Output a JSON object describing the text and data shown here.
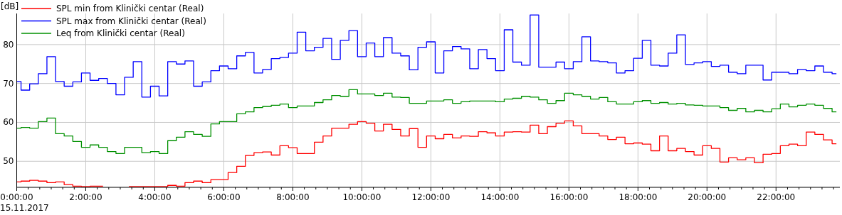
{
  "chart_data": {
    "type": "step",
    "ylabel": "[dB]",
    "legend": "top left",
    "grid": true,
    "x": [
      0,
      0.25,
      0.5,
      0.75,
      1,
      1.25,
      1.5,
      1.75,
      2,
      2.25,
      2.5,
      2.75,
      3,
      3.25,
      3.5,
      3.75,
      4,
      4.25,
      4.5,
      4.75,
      5,
      5.25,
      5.5,
      5.75,
      6,
      6.25,
      6.5,
      6.75,
      7,
      7.25,
      7.5,
      7.75,
      8,
      8.25,
      8.5,
      8.75,
      9,
      9.25,
      9.5,
      9.75,
      10,
      10.25,
      10.5,
      10.75,
      11,
      11.25,
      11.5,
      11.75,
      12,
      12.25,
      12.5,
      12.75,
      13,
      13.25,
      13.5,
      13.75,
      14,
      14.25,
      14.5,
      14.75,
      15,
      15.25,
      15.5,
      15.75,
      16,
      16.25,
      16.5,
      16.75,
      17,
      17.25,
      17.5,
      17.75,
      18,
      18.25,
      18.5,
      18.75,
      19,
      19.25,
      19.5,
      19.75,
      20,
      20.25,
      20.5,
      20.75,
      21,
      21.25,
      21.5,
      21.75,
      22,
      22.25,
      22.5,
      22.75,
      23,
      23.25,
      23.5,
      23.75
    ],
    "xlim": [
      0,
      23.85
    ],
    "xticks": [
      {
        "value": 0,
        "label": "0:00:00"
      },
      {
        "value": 0.3333,
        "label": null
      },
      {
        "value": 0.6667,
        "label": null
      },
      {
        "value": 1,
        "label": null
      },
      {
        "value": 1.3333,
        "label": null
      },
      {
        "value": 1.6667,
        "label": null
      },
      {
        "value": 2,
        "label": "2:00:00"
      },
      {
        "value": 2.3333,
        "label": null
      },
      {
        "value": 2.6667,
        "label": null
      },
      {
        "value": 3,
        "label": null
      },
      {
        "value": 3.3333,
        "label": null
      },
      {
        "value": 3.6667,
        "label": null
      },
      {
        "value": 4,
        "label": "4:00:00"
      },
      {
        "value": 4.3333,
        "label": null
      },
      {
        "value": 4.6667,
        "label": null
      },
      {
        "value": 5,
        "label": null
      },
      {
        "value": 5.3333,
        "label": null
      },
      {
        "value": 5.6667,
        "label": null
      },
      {
        "value": 6,
        "label": "6:00:00"
      },
      {
        "value": 6.3333,
        "label": null
      },
      {
        "value": 6.6667,
        "label": null
      },
      {
        "value": 7,
        "label": null
      },
      {
        "value": 7.3333,
        "label": null
      },
      {
        "value": 7.6667,
        "label": null
      },
      {
        "value": 8,
        "label": "8:00:00"
      },
      {
        "value": 8.3333,
        "label": null
      },
      {
        "value": 8.6667,
        "label": null
      },
      {
        "value": 9,
        "label": null
      },
      {
        "value": 9.3333,
        "label": null
      },
      {
        "value": 9.6667,
        "label": null
      },
      {
        "value": 10,
        "label": "10:00:00"
      },
      {
        "value": 10.3333,
        "label": null
      },
      {
        "value": 10.6667,
        "label": null
      },
      {
        "value": 11,
        "label": null
      },
      {
        "value": 11.3333,
        "label": null
      },
      {
        "value": 11.6667,
        "label": null
      },
      {
        "value": 12,
        "label": "12:00:00"
      },
      {
        "value": 12.3333,
        "label": null
      },
      {
        "value": 12.6667,
        "label": null
      },
      {
        "value": 13,
        "label": null
      },
      {
        "value": 13.3333,
        "label": null
      },
      {
        "value": 13.6667,
        "label": null
      },
      {
        "value": 14,
        "label": "14:00:00"
      },
      {
        "value": 14.3333,
        "label": null
      },
      {
        "value": 14.6667,
        "label": null
      },
      {
        "value": 15,
        "label": null
      },
      {
        "value": 15.3333,
        "label": null
      },
      {
        "value": 15.6667,
        "label": null
      },
      {
        "value": 16,
        "label": "16:00:00"
      },
      {
        "value": 16.3333,
        "label": null
      },
      {
        "value": 16.6667,
        "label": null
      },
      {
        "value": 17,
        "label": null
      },
      {
        "value": 17.3333,
        "label": null
      },
      {
        "value": 17.6667,
        "label": null
      },
      {
        "value": 18,
        "label": "18:00:00"
      },
      {
        "value": 18.3333,
        "label": null
      },
      {
        "value": 18.6667,
        "label": null
      },
      {
        "value": 19,
        "label": null
      },
      {
        "value": 19.3333,
        "label": null
      },
      {
        "value": 19.6667,
        "label": null
      },
      {
        "value": 20,
        "label": "20:00:00"
      },
      {
        "value": 20.3333,
        "label": null
      },
      {
        "value": 20.6667,
        "label": null
      },
      {
        "value": 21,
        "label": null
      },
      {
        "value": 21.3333,
        "label": null
      },
      {
        "value": 21.6667,
        "label": null
      },
      {
        "value": 22,
        "label": "22:00:00"
      },
      {
        "value": 22.3333,
        "label": null
      },
      {
        "value": 22.6667,
        "label": null
      },
      {
        "value": 23,
        "label": null
      },
      {
        "value": 23.3333,
        "label": null
      },
      {
        "value": 23.6667,
        "label": null
      }
    ],
    "ylim": [
      43.3,
      88
    ],
    "yticks": [
      50,
      60,
      70,
      80
    ],
    "annotations": [
      "15.11.2017"
    ],
    "series": [
      {
        "name": "SPL min from Klinički centar (Real)",
        "color": "#ff0000",
        "values": [
          44.7,
          44.9,
          45.1,
          44.9,
          44.5,
          44.7,
          44,
          43.6,
          43.5,
          43.6,
          43.6,
          null,
          null,
          43.5,
          43.5,
          43.5,
          43.5,
          43.5,
          43.8,
          43.6,
          44.5,
          44.9,
          44.5,
          45.3,
          45.3,
          47.1,
          48.7,
          51.5,
          52.2,
          52.4,
          51.6,
          54,
          53.5,
          52,
          52,
          54.9,
          56.5,
          58.5,
          58.5,
          59.5,
          60.2,
          59.8,
          57.8,
          59.5,
          58.2,
          56.5,
          58.4,
          53.6,
          56.5,
          55.8,
          56.9,
          56,
          56.5,
          56.4,
          57.6,
          57.3,
          56.5,
          57.5,
          57.6,
          57.5,
          59.3,
          57.1,
          58.9,
          59.8,
          60.4,
          59.1,
          57.1,
          57.1,
          56.5,
          55.6,
          56.2,
          54.5,
          54.7,
          54.4,
          52.7,
          56.5,
          52.7,
          53.3,
          52.5,
          51.6,
          54,
          53.3,
          49.8,
          50.9,
          50.4,
          50.9,
          49.6,
          51.8,
          52,
          54,
          54.4,
          54,
          57.5,
          56.9,
          55.5,
          54.5
        ]
      },
      {
        "name": "SPL max from Klinički centar (Real)",
        "color": "#0000ff",
        "values": [
          70.5,
          68.3,
          69.9,
          72.5,
          76.9,
          70.5,
          69.3,
          70.4,
          72.7,
          70.8,
          71.3,
          70,
          67.1,
          71.6,
          75.6,
          66.5,
          69.3,
          66.8,
          75.6,
          75,
          75.8,
          69.3,
          70.4,
          73.3,
          74.5,
          73.8,
          77.1,
          78,
          72.7,
          73.6,
          76.4,
          76.7,
          77.8,
          83.2,
          78.4,
          79.3,
          81.6,
          76.2,
          81.1,
          83.6,
          76.9,
          80.4,
          76.9,
          81.8,
          77.8,
          77.1,
          73.5,
          79.3,
          80.7,
          72.7,
          78.4,
          79.5,
          78.9,
          73.8,
          78.7,
          76.4,
          73.3,
          83.8,
          75.5,
          74.7,
          87.6,
          74.2,
          74.2,
          75.5,
          73.8,
          75.6,
          82,
          75.8,
          75.6,
          75.3,
          72.7,
          73.3,
          76.5,
          81.1,
          74.7,
          74.5,
          77.8,
          82.5,
          74.9,
          75.3,
          75.6,
          74.4,
          74.7,
          72.9,
          72.5,
          74.7,
          74.7,
          70.9,
          72.9,
          72.9,
          72.5,
          73.6,
          73.3,
          74.5,
          72.9,
          72.5
        ]
      },
      {
        "name": "Leq from Klinički centar (Real)",
        "color": "#009000",
        "values": [
          58.5,
          58.7,
          58.5,
          60.2,
          61.1,
          57.1,
          56.5,
          55.1,
          53.6,
          54.2,
          53.6,
          52.5,
          52,
          53.6,
          53.6,
          52.2,
          52.5,
          52,
          55.3,
          56.2,
          57.6,
          56.9,
          56.4,
          59.6,
          60.2,
          60.2,
          62.2,
          62.7,
          63.8,
          64.1,
          64.4,
          64.7,
          63.8,
          64.2,
          64.2,
          65.1,
          65.8,
          66.9,
          66.7,
          68.4,
          67.3,
          67.3,
          66.9,
          67.5,
          66.5,
          66.4,
          64.9,
          64.9,
          65.5,
          65.5,
          65.8,
          64.9,
          65.3,
          65.5,
          65.5,
          65.5,
          65.3,
          66,
          66.2,
          66.7,
          66.5,
          65.8,
          64.9,
          65.6,
          67.5,
          67.1,
          66.7,
          66,
          66.4,
          65.3,
          64.7,
          64.7,
          65.3,
          65.6,
          64.9,
          65.1,
          64.7,
          64.9,
          64.5,
          64.4,
          64.2,
          64.2,
          63.8,
          63.1,
          63.6,
          62.7,
          63.1,
          62.7,
          63.5,
          64.7,
          64,
          64.4,
          64.7,
          64.4,
          63.6,
          62.7
        ]
      }
    ]
  }
}
